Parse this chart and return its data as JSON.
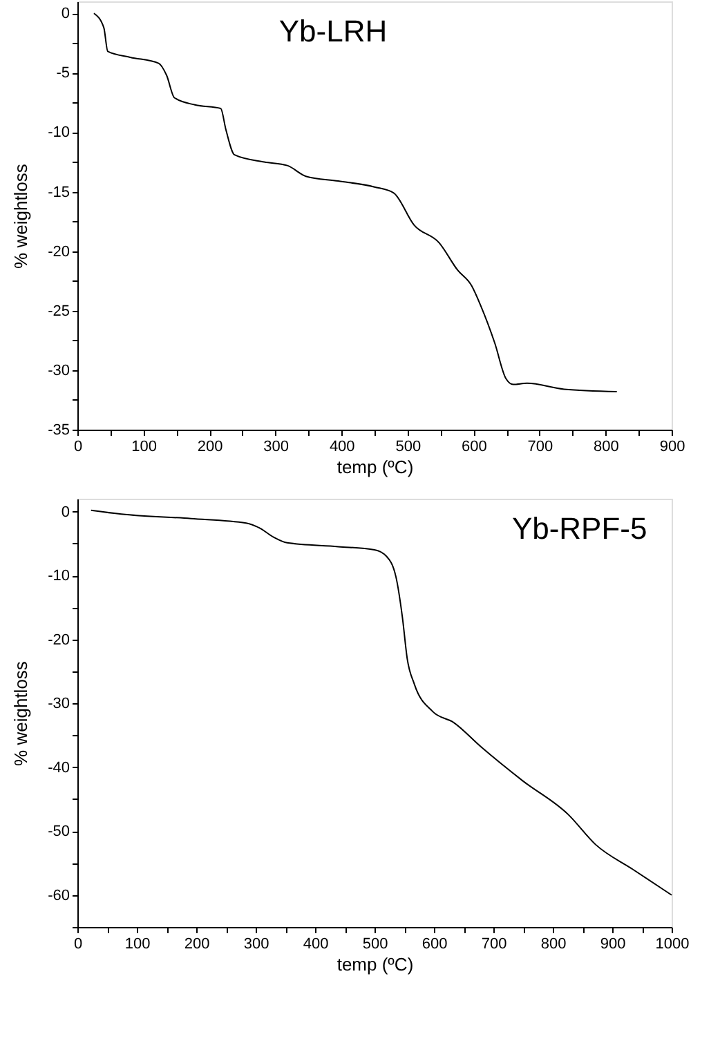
{
  "chart_data": [
    {
      "type": "line",
      "title": "Yb-LRH",
      "xlabel": "temp (ºC)",
      "ylabel": "% weightloss",
      "x": [
        25,
        40,
        46,
        80,
        123,
        135,
        147,
        178,
        217,
        225,
        238,
        283,
        318,
        346,
        395,
        450,
        479,
        510,
        548,
        576,
        597,
        611,
        632,
        649,
        660,
        681,
        737,
        817
      ],
      "series": [
        {
          "color": "#000000",
          "values": [
            0,
            -1.2,
            -3.2,
            -3.7,
            -4.2,
            -5.2,
            -7.1,
            -7.7,
            -8,
            -9.8,
            -11.9,
            -12.5,
            -12.8,
            -13.7,
            -14.1,
            -14.6,
            -15.1,
            -17.8,
            -19.3,
            -21.6,
            -22.9,
            -24.6,
            -27.7,
            -30.7,
            -31.2,
            -31.1,
            -31.6,
            -31.8
          ]
        }
      ],
      "xlim": [
        0,
        900
      ],
      "ylim": [
        -35,
        1
      ],
      "xticks": [
        0,
        {
          "value": 50,
          "label": null
        },
        100,
        {
          "value": 150,
          "label": null
        },
        200,
        {
          "value": 250,
          "label": null
        },
        300,
        {
          "value": 350,
          "label": null
        },
        400,
        {
          "value": 450,
          "label": null
        },
        500,
        {
          "value": 550,
          "label": null
        },
        600,
        {
          "value": 650,
          "label": null
        },
        700,
        {
          "value": 750,
          "label": null
        },
        800,
        {
          "value": 850,
          "label": null
        },
        900
      ],
      "yticks": [
        -35,
        {
          "value": -32.5,
          "label": null
        },
        -30,
        {
          "value": -27.5,
          "label": null
        },
        -25,
        {
          "value": -22.5,
          "label": null
        },
        -20,
        {
          "value": -17.5,
          "label": null
        },
        -15,
        {
          "value": -12.5,
          "label": null
        },
        -10,
        {
          "value": -7.5,
          "label": null
        },
        -5,
        {
          "value": -2.5,
          "label": null
        },
        0
      ],
      "grid": false,
      "line_style": "solid",
      "marker": "none"
    },
    {
      "type": "line",
      "title": "Yb-RPF-5",
      "xlabel": "temp (ºC)",
      "ylabel": "% weightloss",
      "x": [
        23,
        74,
        191,
        284,
        307,
        330,
        353,
        439,
        500,
        520,
        536,
        547,
        555,
        567,
        598,
        633,
        679,
        749,
        826,
        872,
        935,
        1000
      ],
      "series": [
        {
          "color": "#000000",
          "values": [
            0.2,
            -0.4,
            -1.1,
            -1.8,
            -2.6,
            -4,
            -4.9,
            -5.5,
            -6,
            -7,
            -10.2,
            -16.6,
            -23,
            -27,
            -31.3,
            -33,
            -36.8,
            -42.1,
            -47.4,
            -52.1,
            -56,
            -60
          ]
        }
      ],
      "xlim": [
        0,
        1000
      ],
      "ylim": [
        -65,
        2
      ],
      "xticks": [
        0,
        {
          "value": 50,
          "label": null
        },
        100,
        {
          "value": 150,
          "label": null
        },
        200,
        {
          "value": 250,
          "label": null
        },
        300,
        {
          "value": 350,
          "label": null
        },
        400,
        {
          "value": 450,
          "label": null
        },
        500,
        {
          "value": 550,
          "label": null
        },
        600,
        {
          "value": 650,
          "label": null
        },
        700,
        {
          "value": 750,
          "label": null
        },
        800,
        {
          "value": 850,
          "label": null
        },
        900,
        {
          "value": 950,
          "label": null
        },
        1000
      ],
      "yticks": [
        {
          "value": -65,
          "label": null
        },
        -60,
        {
          "value": -55,
          "label": null
        },
        -50,
        {
          "value": -45,
          "label": null
        },
        -40,
        {
          "value": -35,
          "label": null
        },
        -30,
        {
          "value": -25,
          "label": null
        },
        -20,
        {
          "value": -15,
          "label": null
        },
        -10,
        {
          "value": -5,
          "label": null
        },
        0
      ],
      "grid": false,
      "line_style": "solid",
      "marker": "none"
    }
  ]
}
